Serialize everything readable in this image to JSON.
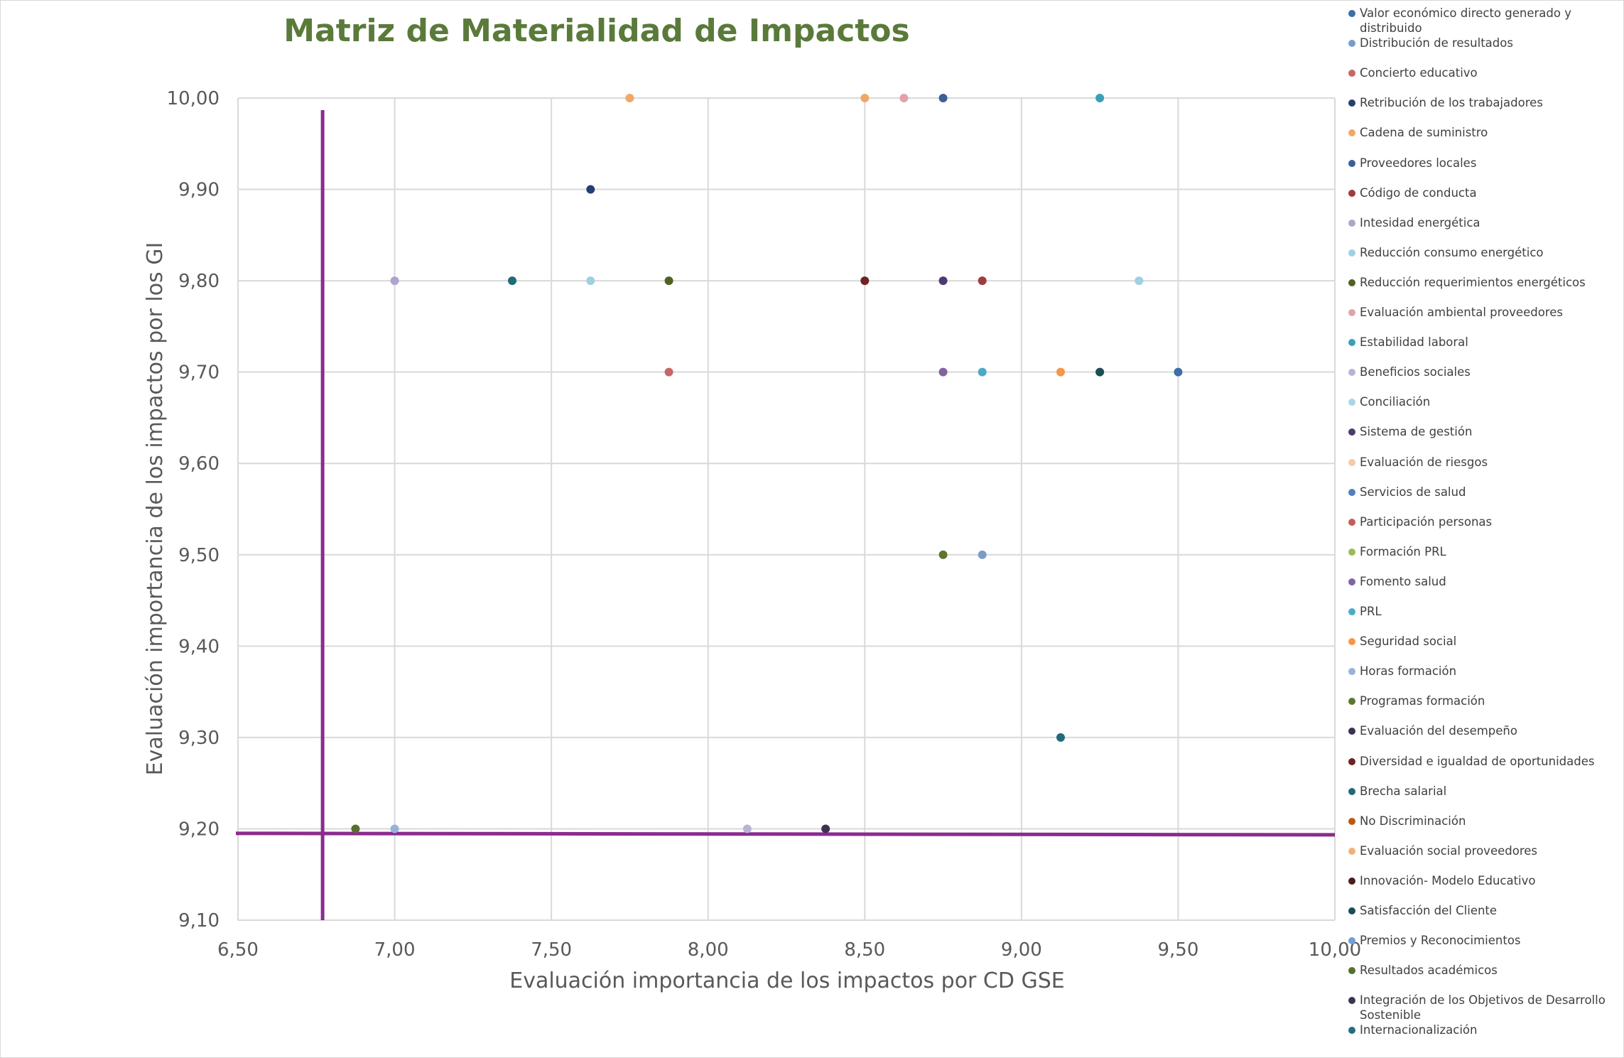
{
  "chart_data": {
    "type": "scatter",
    "title": "Matriz de Materialidad de Impactos",
    "xlabel": "Evaluación importancia de los impactos por CD GSE",
    "ylabel": "Evaluación importancia de los impactos por los GI",
    "xlim": [
      6.5,
      10.0
    ],
    "ylim": [
      9.1,
      10.0
    ],
    "x_ticks": [
      "6,50",
      "7,00",
      "7,50",
      "8,00",
      "8,50",
      "9,00",
      "9,50",
      "10,00"
    ],
    "y_ticks": [
      "9,10",
      "9,20",
      "9,30",
      "9,40",
      "9,50",
      "9,60",
      "9,70",
      "9,80",
      "9,90",
      "10,00"
    ],
    "grid": true,
    "legend_position": "right",
    "reference_lines": {
      "x": 6.77,
      "y": 9.195,
      "color": "#8b2b8f"
    },
    "series": [
      {
        "name": "Valor económico directo generado y distribuido",
        "color": "#3f6ea8",
        "points": [
          [
            9.5,
            9.7
          ]
        ]
      },
      {
        "name": "Distribución de resultados",
        "color": "#7b9cc9",
        "points": [
          [
            8.875,
            9.5
          ]
        ]
      },
      {
        "name": "Concierto educativo",
        "color": "#c96666",
        "points": [
          [
            7.875,
            9.7
          ]
        ]
      },
      {
        "name": "Retribución de los trabajadores",
        "color": "#243f73",
        "points": [
          [
            7.625,
            9.9
          ]
        ]
      },
      {
        "name": "Cadena de suministro",
        "color": "#f0a866",
        "points": [
          [
            7.75,
            10.0
          ],
          [
            8.5,
            10.0
          ]
        ]
      },
      {
        "name": "Proveedores locales",
        "color": "#3b5f96",
        "points": [
          [
            8.75,
            10.0
          ]
        ]
      },
      {
        "name": "Código de conducta",
        "color": "#a03c3c",
        "points": [
          [
            8.875,
            9.8
          ]
        ]
      },
      {
        "name": "Intesidad energética",
        "color": "#b0a4cc",
        "points": [
          [
            7.0,
            9.8
          ]
        ]
      },
      {
        "name": "Reducción consumo energético",
        "color": "#9fd0e3",
        "points": [
          [
            7.625,
            9.8
          ],
          [
            9.375,
            9.8
          ]
        ]
      },
      {
        "name": "Reducción requerimientos energéticos",
        "color": "#4f6222",
        "points": [
          [
            7.875,
            9.8
          ]
        ]
      },
      {
        "name": "Evaluación ambiental proveedores",
        "color": "#e0a3a8",
        "points": [
          [
            8.625,
            10.0
          ]
        ]
      },
      {
        "name": "Estabilidad laboral",
        "color": "#3aa0b8",
        "points": [
          [
            9.25,
            10.0
          ]
        ]
      },
      {
        "name": "Beneficios sociales",
        "color": "#b8b3d4",
        "points": [
          [
            8.125,
            9.2
          ]
        ]
      },
      {
        "name": "Conciliación",
        "color": "#a8d6e6",
        "points": []
      },
      {
        "name": "Sistema de gestión",
        "color": "#4e3a6e",
        "points": [
          [
            8.75,
            9.8
          ]
        ]
      },
      {
        "name": "Evaluación de riesgos",
        "color": "#f6c9a8",
        "points": []
      },
      {
        "name": "Servicios de salud",
        "color": "#4f7fbf",
        "points": []
      },
      {
        "name": "Participación personas",
        "color": "#c95a56",
        "points": []
      },
      {
        "name": "Formación PRL",
        "color": "#9bbb59",
        "points": []
      },
      {
        "name": "Fomento salud",
        "color": "#8064a2",
        "points": [
          [
            8.75,
            9.7
          ]
        ]
      },
      {
        "name": "PRL",
        "color": "#4bacc6",
        "points": [
          [
            8.875,
            9.7
          ]
        ]
      },
      {
        "name": "Seguridad social",
        "color": "#f79646",
        "points": [
          [
            9.125,
            9.7
          ]
        ]
      },
      {
        "name": "Horas formación",
        "color": "#95b3d7",
        "points": [
          [
            7.0,
            9.2
          ]
        ]
      },
      {
        "name": "Programas formación",
        "color": "#5f7530",
        "points": [
          [
            8.75,
            9.5
          ]
        ]
      },
      {
        "name": "Evaluación del desempeño",
        "color": "#3f3151",
        "points": [
          [
            8.375,
            9.2
          ]
        ]
      },
      {
        "name": "Diversidad e igualdad de oportunidades",
        "color": "#6b2424",
        "points": [
          [
            8.5,
            9.8
          ]
        ]
      },
      {
        "name": "Brecha salarial",
        "color": "#216a7a",
        "points": [
          [
            7.375,
            9.8
          ],
          [
            9.125,
            9.3
          ]
        ]
      },
      {
        "name": "No Discriminación",
        "color": "#c0560f",
        "points": []
      },
      {
        "name": "Evaluación social proveedores",
        "color": "#f5b078",
        "points": []
      },
      {
        "name": "Innovación- Modelo Educativo",
        "color": "#4a1e1e",
        "points": []
      },
      {
        "name": "Satisfacción del Cliente",
        "color": "#1b4e55",
        "points": [
          [
            9.25,
            9.7
          ]
        ]
      },
      {
        "name": "Premios y Reconocimientos",
        "color": "#6fa0d8",
        "points": []
      },
      {
        "name": "Resultados académicos",
        "color": "#56702e",
        "points": [
          [
            6.875,
            9.2
          ]
        ]
      },
      {
        "name": "Integración de los Objetivos de Desarrollo Sostenible",
        "color": "#3c3450",
        "points": []
      },
      {
        "name": "Internacionalización",
        "color": "#266d80",
        "points": []
      }
    ]
  }
}
